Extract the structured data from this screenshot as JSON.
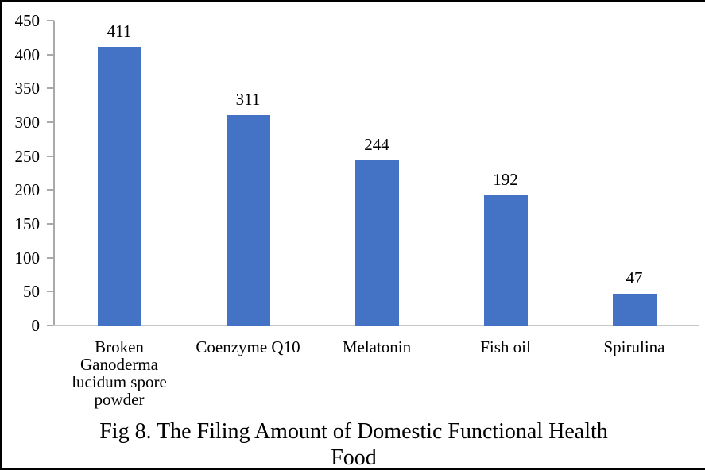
{
  "figure": {
    "caption_lines": [
      "Fig 8. The Filing Amount of Domestic Functional Health",
      "Food"
    ]
  },
  "chart_data": {
    "type": "bar",
    "title": "Fig 8. The Filing Amount of Domestic Functional Health Food",
    "categories": [
      "Broken Ganoderma lucidum spore powder",
      "Coenzyme Q10",
      "Melatonin",
      "Fish oil",
      "Spirulina"
    ],
    "values": [
      411,
      311,
      244,
      192,
      47
    ],
    "data_labels": [
      "411",
      "311",
      "244",
      "192",
      "47"
    ],
    "xlabel": "",
    "ylabel": "",
    "ylim": [
      0,
      450
    ],
    "yticks": [
      0,
      50,
      100,
      150,
      200,
      250,
      300,
      350,
      400,
      450
    ],
    "grid": false,
    "legend": "none",
    "bar_color": "#4472c4",
    "axis_color": "#a9a9a9",
    "baseline_color": "#c8c8c8",
    "text_color": "#000000"
  }
}
